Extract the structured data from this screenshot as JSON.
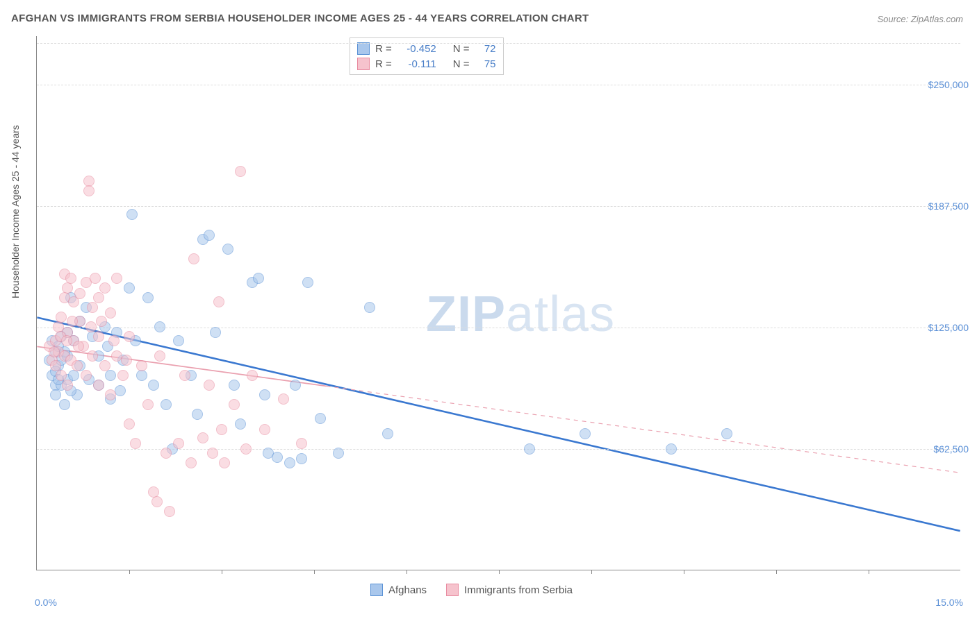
{
  "title": "AFGHAN VS IMMIGRANTS FROM SERBIA HOUSEHOLDER INCOME AGES 25 - 44 YEARS CORRELATION CHART",
  "source": "Source: ZipAtlas.com",
  "ylabel": "Householder Income Ages 25 - 44 years",
  "watermark_a": "ZIP",
  "watermark_b": "atlas",
  "chart": {
    "type": "scatter",
    "background_color": "#ffffff",
    "grid_color": "#dddddd",
    "axis_color": "#888888",
    "xlim": [
      0.0,
      15.0
    ],
    "ylim": [
      0,
      275000
    ],
    "x_min_label": "0.0%",
    "x_max_label": "15.0%",
    "y_ticks": [
      62500,
      125000,
      187500,
      250000
    ],
    "y_tick_labels": [
      "$62,500",
      "$125,000",
      "$187,500",
      "$250,000"
    ],
    "x_tick_positions": [
      1.5,
      3.0,
      4.5,
      6.0,
      7.5,
      9.0,
      10.5,
      12.0,
      13.5
    ],
    "marker_radius": 8,
    "marker_opacity": 0.55,
    "series": [
      {
        "name": "Afghans",
        "fill_color": "#a9c7ec",
        "stroke_color": "#5c93d6",
        "R": "-0.452",
        "N": "72",
        "trend": {
          "x1": 0.0,
          "y1": 130000,
          "x2": 15.0,
          "y2": 20000,
          "stroke": "#3a78d0",
          "width": 2.6,
          "dash": "none"
        },
        "points": [
          [
            0.2,
            108000
          ],
          [
            0.25,
            118000
          ],
          [
            0.25,
            100000
          ],
          [
            0.3,
            112000
          ],
          [
            0.3,
            95000
          ],
          [
            0.3,
            90000
          ],
          [
            0.35,
            115000
          ],
          [
            0.35,
            105000
          ],
          [
            0.4,
            120000
          ],
          [
            0.4,
            108000
          ],
          [
            0.4,
            95000
          ],
          [
            0.45,
            85000
          ],
          [
            0.5,
            122000
          ],
          [
            0.5,
            110000
          ],
          [
            0.5,
            98000
          ],
          [
            0.55,
            140000
          ],
          [
            0.6,
            118000
          ],
          [
            0.6,
            100000
          ],
          [
            0.65,
            90000
          ],
          [
            0.7,
            128000
          ],
          [
            0.8,
            135000
          ],
          [
            0.9,
            120000
          ],
          [
            1.0,
            110000
          ],
          [
            1.0,
            95000
          ],
          [
            1.1,
            125000
          ],
          [
            1.2,
            100000
          ],
          [
            1.2,
            88000
          ],
          [
            1.3,
            122000
          ],
          [
            1.4,
            108000
          ],
          [
            1.5,
            145000
          ],
          [
            1.55,
            183000
          ],
          [
            1.6,
            118000
          ],
          [
            1.7,
            100000
          ],
          [
            1.8,
            140000
          ],
          [
            1.9,
            95000
          ],
          [
            2.0,
            125000
          ],
          [
            2.1,
            85000
          ],
          [
            2.2,
            62000
          ],
          [
            2.3,
            118000
          ],
          [
            2.5,
            100000
          ],
          [
            2.6,
            80000
          ],
          [
            2.7,
            170000
          ],
          [
            2.8,
            172000
          ],
          [
            2.9,
            122000
          ],
          [
            3.1,
            165000
          ],
          [
            3.2,
            95000
          ],
          [
            3.3,
            75000
          ],
          [
            3.5,
            148000
          ],
          [
            3.6,
            150000
          ],
          [
            3.7,
            90000
          ],
          [
            3.75,
            60000
          ],
          [
            3.9,
            58000
          ],
          [
            4.1,
            55000
          ],
          [
            4.2,
            95000
          ],
          [
            4.3,
            57000
          ],
          [
            4.4,
            148000
          ],
          [
            4.6,
            78000
          ],
          [
            4.9,
            60000
          ],
          [
            5.4,
            135000
          ],
          [
            5.7,
            70000
          ],
          [
            8.0,
            62000
          ],
          [
            8.9,
            70000
          ],
          [
            10.3,
            62000
          ],
          [
            11.2,
            70000
          ],
          [
            0.3,
            102000
          ],
          [
            0.35,
            98000
          ],
          [
            0.45,
            112000
          ],
          [
            0.55,
            92000
          ],
          [
            0.7,
            105000
          ],
          [
            0.85,
            98000
          ],
          [
            1.15,
            115000
          ],
          [
            1.35,
            92000
          ]
        ]
      },
      {
        "name": "Immigrants from Serbia",
        "fill_color": "#f6c3cd",
        "stroke_color": "#e88ba0",
        "R": "-0.111",
        "N": "75",
        "trend": {
          "x1": 0.0,
          "y1": 115000,
          "x2": 15.0,
          "y2": 50000,
          "stroke": "#eaa0af",
          "width": 1.2,
          "dash": "6,6",
          "solid_until": 4.7
        },
        "points": [
          [
            0.2,
            115000
          ],
          [
            0.25,
            108000
          ],
          [
            0.3,
            118000
          ],
          [
            0.3,
            105000
          ],
          [
            0.35,
            125000
          ],
          [
            0.35,
            112000
          ],
          [
            0.4,
            130000
          ],
          [
            0.4,
            100000
          ],
          [
            0.45,
            152000
          ],
          [
            0.45,
            140000
          ],
          [
            0.45,
            110000
          ],
          [
            0.5,
            145000
          ],
          [
            0.5,
            122000
          ],
          [
            0.5,
            95000
          ],
          [
            0.55,
            150000
          ],
          [
            0.55,
            108000
          ],
          [
            0.6,
            138000
          ],
          [
            0.6,
            118000
          ],
          [
            0.65,
            105000
          ],
          [
            0.7,
            142000
          ],
          [
            0.7,
            128000
          ],
          [
            0.75,
            115000
          ],
          [
            0.8,
            148000
          ],
          [
            0.8,
            100000
          ],
          [
            0.85,
            200000
          ],
          [
            0.85,
            195000
          ],
          [
            0.9,
            135000
          ],
          [
            0.9,
            110000
          ],
          [
            0.95,
            150000
          ],
          [
            1.0,
            140000
          ],
          [
            1.0,
            120000
          ],
          [
            1.0,
            95000
          ],
          [
            1.1,
            145000
          ],
          [
            1.1,
            105000
          ],
          [
            1.2,
            132000
          ],
          [
            1.2,
            90000
          ],
          [
            1.3,
            150000
          ],
          [
            1.3,
            110000
          ],
          [
            1.4,
            100000
          ],
          [
            1.5,
            120000
          ],
          [
            1.5,
            75000
          ],
          [
            1.6,
            65000
          ],
          [
            1.7,
            105000
          ],
          [
            1.8,
            85000
          ],
          [
            1.9,
            40000
          ],
          [
            1.95,
            35000
          ],
          [
            2.0,
            110000
          ],
          [
            2.1,
            60000
          ],
          [
            2.15,
            30000
          ],
          [
            2.3,
            65000
          ],
          [
            2.4,
            100000
          ],
          [
            2.5,
            55000
          ],
          [
            2.55,
            160000
          ],
          [
            2.7,
            68000
          ],
          [
            2.8,
            95000
          ],
          [
            2.85,
            60000
          ],
          [
            2.95,
            138000
          ],
          [
            3.0,
            72000
          ],
          [
            3.05,
            55000
          ],
          [
            3.2,
            85000
          ],
          [
            3.3,
            205000
          ],
          [
            3.4,
            62000
          ],
          [
            3.5,
            100000
          ],
          [
            3.7,
            72000
          ],
          [
            4.0,
            88000
          ],
          [
            4.3,
            65000
          ],
          [
            0.28,
            112000
          ],
          [
            0.38,
            120000
          ],
          [
            0.48,
            118000
          ],
          [
            0.58,
            128000
          ],
          [
            0.68,
            115000
          ],
          [
            0.88,
            125000
          ],
          [
            1.05,
            128000
          ],
          [
            1.25,
            118000
          ],
          [
            1.45,
            108000
          ]
        ]
      }
    ]
  },
  "legend_stats_labels": {
    "R": "R =",
    "N": "N ="
  }
}
